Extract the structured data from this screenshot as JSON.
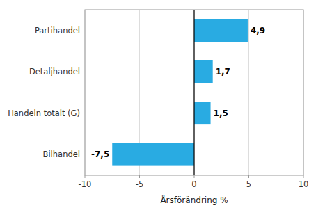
{
  "chart_data": {
    "type": "bar",
    "orientation": "horizontal",
    "categories": [
      "Bilhandel",
      "Handeln totalt (G)",
      "Detaljhandel",
      "Partihandel"
    ],
    "values": [
      -7.5,
      1.5,
      1.7,
      4.9
    ],
    "value_labels": [
      "-7,5",
      "1,5",
      "1,7",
      "4,9"
    ],
    "data_labels": true,
    "color": "#29abe2",
    "xlabel": "Årsförändring %",
    "xlim": [
      -10,
      10
    ],
    "xticks": [
      -10,
      -5,
      0,
      5,
      10
    ],
    "grid": true
  }
}
